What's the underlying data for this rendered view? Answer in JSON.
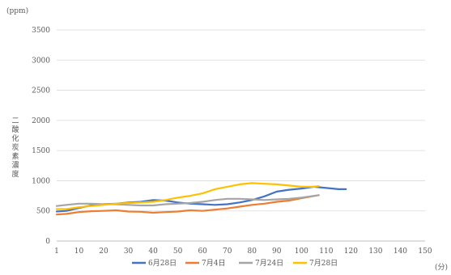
{
  "chart_data": {
    "type": "line",
    "ylabel_unit": "(ppm)",
    "xlabel_unit": "(分)",
    "ylabel": "二酸化炭素濃度",
    "ylim": [
      0,
      3500
    ],
    "yticks": [
      0,
      500,
      1000,
      1500,
      2000,
      2500,
      3000,
      3500
    ],
    "xlim": [
      1,
      150
    ],
    "xticks": [
      1,
      10,
      20,
      30,
      40,
      50,
      60,
      70,
      80,
      90,
      100,
      110,
      120,
      130,
      140,
      150
    ],
    "grid": "horizontal",
    "legend": "bottom",
    "series": [
      {
        "name": "6月28日",
        "color": "#4472C4",
        "x": [
          1,
          5,
          10,
          15,
          20,
          25,
          30,
          35,
          40,
          45,
          50,
          55,
          60,
          65,
          70,
          75,
          80,
          85,
          90,
          95,
          100,
          105,
          110,
          115,
          118
        ],
        "y": [
          490,
          500,
          550,
          590,
          610,
          620,
          640,
          650,
          680,
          670,
          640,
          620,
          610,
          600,
          610,
          640,
          680,
          740,
          820,
          850,
          870,
          900,
          880,
          860,
          860
        ]
      },
      {
        "name": "7月4日",
        "color": "#ED7D31",
        "x": [
          1,
          5,
          10,
          15,
          20,
          25,
          30,
          35,
          40,
          45,
          50,
          55,
          60,
          65,
          70,
          75,
          80,
          85,
          90,
          95,
          100,
          107
        ],
        "y": [
          440,
          450,
          480,
          495,
          500,
          510,
          490,
          485,
          470,
          480,
          490,
          510,
          500,
          520,
          540,
          570,
          600,
          620,
          650,
          670,
          710,
          760
        ]
      },
      {
        "name": "7月24日",
        "color": "#A5A5A5",
        "x": [
          1,
          5,
          10,
          15,
          20,
          25,
          30,
          35,
          40,
          45,
          50,
          55,
          60,
          65,
          70,
          75,
          80,
          85,
          90,
          95,
          100,
          107
        ],
        "y": [
          580,
          600,
          620,
          620,
          610,
          610,
          600,
          590,
          590,
          610,
          620,
          630,
          650,
          680,
          700,
          700,
          690,
          680,
          690,
          700,
          720,
          760
        ]
      },
      {
        "name": "7月28日",
        "color": "#FFC000",
        "x": [
          1,
          5,
          10,
          15,
          20,
          25,
          30,
          35,
          40,
          45,
          50,
          55,
          60,
          65,
          70,
          75,
          80,
          85,
          90,
          95,
          100,
          105,
          107
        ],
        "y": [
          530,
          530,
          560,
          580,
          600,
          620,
          630,
          640,
          650,
          680,
          720,
          750,
          790,
          860,
          900,
          940,
          960,
          950,
          940,
          920,
          900,
          900,
          910
        ]
      }
    ]
  }
}
